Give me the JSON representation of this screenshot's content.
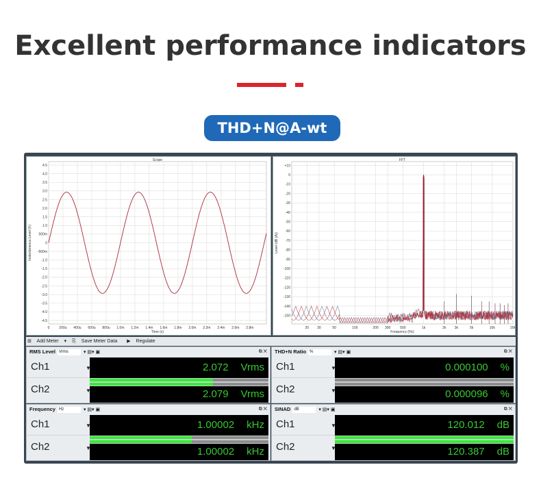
{
  "header": {
    "title": "Excellent performance indicators",
    "badge": "THD+N@A-wt"
  },
  "colors": {
    "accent_red": "#d8262c",
    "badge_blue": "#1f69b8",
    "meter_text": "#39c834",
    "meter_bar": "#33ee33",
    "trace": "#a8283a"
  },
  "toolbar": {
    "add_meter": "Add Meter",
    "save": "Save Meter Data",
    "regulate": "Regulate"
  },
  "meters": [
    {
      "title": "RMS Level",
      "unit_select": "Vrms",
      "rows": [
        {
          "ch": "Ch1",
          "value": "2.072",
          "unit": "Vrms",
          "bar": 0.69
        },
        {
          "ch": "Ch2",
          "value": "2.079",
          "unit": "Vrms",
          "bar": 0.69
        }
      ]
    },
    {
      "title": "THD+N Ratio",
      "unit_select": "%",
      "rows": [
        {
          "ch": "Ch1",
          "value": "0.000100",
          "unit": "%",
          "bar": 0
        },
        {
          "ch": "Ch2",
          "value": "0.000096",
          "unit": "%",
          "bar": 0
        }
      ]
    },
    {
      "title": "Frequency",
      "unit_select": "Hz",
      "rows": [
        {
          "ch": "Ch1",
          "value": "1.00002",
          "unit": "kHz",
          "bar": 0.57
        },
        {
          "ch": "Ch2",
          "value": "1.00002",
          "unit": "kHz",
          "bar": 0.57
        }
      ]
    },
    {
      "title": "SINAD",
      "unit_select": "dB",
      "rows": [
        {
          "ch": "Ch1",
          "value": "120.012",
          "unit": "dB",
          "bar": 1
        },
        {
          "ch": "Ch2",
          "value": "120.387",
          "unit": "dB",
          "bar": 1
        }
      ]
    }
  ],
  "chart_data": [
    {
      "type": "line",
      "title": "Scope",
      "xlabel": "Time (s)",
      "ylabel": "Instantaneous Level (V)",
      "xlim": [
        0,
        0.00303
      ],
      "ylim": [
        -4.7,
        4.7
      ],
      "grid": true,
      "xticks": [
        [
          0,
          "0"
        ],
        [
          0.0002,
          "200u"
        ],
        [
          0.0004,
          "400u"
        ],
        [
          0.0006,
          "600u"
        ],
        [
          0.0008,
          "800u"
        ],
        [
          0.001,
          "1.0m"
        ],
        [
          0.0012,
          "1.2m"
        ],
        [
          0.0014,
          "1.4m"
        ],
        [
          0.0016,
          "1.6m"
        ],
        [
          0.0018,
          "1.8m"
        ],
        [
          0.002,
          "2.0m"
        ],
        [
          0.0022,
          "2.2m"
        ],
        [
          0.0024,
          "2.4m"
        ],
        [
          0.0026,
          "2.6m"
        ],
        [
          0.0028,
          "2.8m"
        ]
      ],
      "yticks": [
        [
          4.5,
          "4.5"
        ],
        [
          4,
          "4.0"
        ],
        [
          3.5,
          "3.5"
        ],
        [
          3,
          "3.0"
        ],
        [
          2.5,
          "2.5"
        ],
        [
          2,
          "2.0"
        ],
        [
          1.5,
          "1.5"
        ],
        [
          1,
          "1.0"
        ],
        [
          0.5,
          "500m"
        ],
        [
          0,
          "0"
        ],
        [
          -0.5,
          "-500m"
        ],
        [
          -1,
          "-1.0"
        ],
        [
          -1.5,
          "-1.5"
        ],
        [
          -2,
          "-2.0"
        ],
        [
          -2.5,
          "-2.5"
        ],
        [
          -3,
          "-3.0"
        ],
        [
          -3.5,
          "-3.5"
        ],
        [
          -4,
          "-4.0"
        ],
        [
          -4.5,
          "-4.5"
        ]
      ],
      "series": [
        {
          "kind": "sine",
          "amplitude_v": 2.93,
          "frequency_hz": 1000
        }
      ]
    },
    {
      "type": "line",
      "title": "FFT",
      "xlabel": "Frequency (Hz)",
      "ylabel": "Level (dB (A))",
      "xscale": "log",
      "xlim": [
        12,
        20000
      ],
      "ylim": [
        -159,
        14
      ],
      "grid": true,
      "xticks": [
        [
          20,
          "20"
        ],
        [
          30,
          "30"
        ],
        [
          50,
          "50"
        ],
        [
          100,
          "100"
        ],
        [
          200,
          "200"
        ],
        [
          300,
          "300"
        ],
        [
          500,
          "500"
        ],
        [
          1000,
          "1k"
        ],
        [
          2000,
          "2k"
        ],
        [
          3000,
          "3k"
        ],
        [
          5000,
          "5k"
        ],
        [
          10000,
          "10k"
        ],
        [
          20000,
          "20k"
        ]
      ],
      "yticks": [
        [
          10,
          "+10"
        ],
        [
          0,
          "0"
        ],
        [
          -10,
          "-10"
        ],
        [
          -20,
          "-20"
        ],
        [
          -30,
          "-30"
        ],
        [
          -40,
          "-40"
        ],
        [
          -50,
          "-50"
        ],
        [
          -60,
          "-60"
        ],
        [
          -70,
          "-70"
        ],
        [
          -80,
          "-80"
        ],
        [
          -90,
          "-90"
        ],
        [
          -100,
          "-100"
        ],
        [
          -110,
          "-110"
        ],
        [
          -120,
          "-120"
        ],
        [
          -130,
          "-130"
        ],
        [
          -140,
          "-140"
        ],
        [
          -150,
          "-150"
        ]
      ],
      "fundamental": {
        "freq": 1000,
        "level": 0
      },
      "harmonics": [
        [
          2000,
          -135
        ],
        [
          3000,
          -127
        ],
        [
          5000,
          -129
        ],
        [
          7000,
          -135
        ],
        [
          9000,
          -135
        ],
        [
          11000,
          -137
        ],
        [
          13000,
          -137
        ],
        [
          15000,
          -139
        ],
        [
          17000,
          -137
        ]
      ],
      "noise_floor": -150
    }
  ]
}
